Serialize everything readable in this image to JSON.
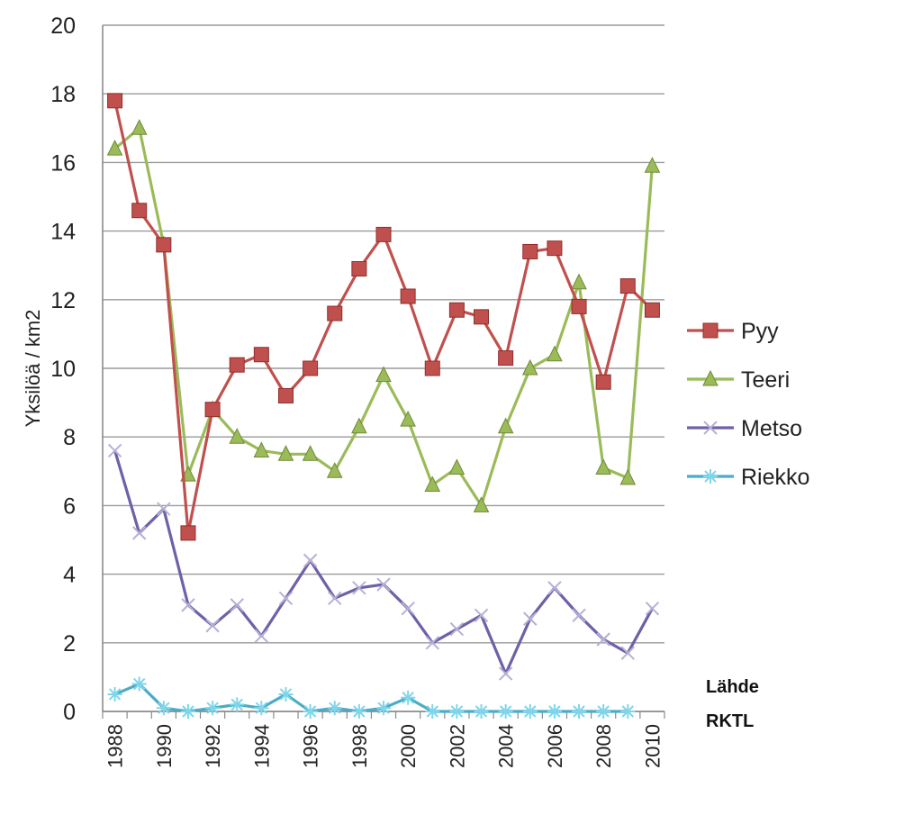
{
  "chart_data": {
    "type": "line",
    "title": "",
    "xlabel": "",
    "ylabel": "Yksilöä / km2",
    "x": [
      1988,
      1989,
      1990,
      1991,
      1992,
      1993,
      1994,
      1995,
      1996,
      1997,
      1998,
      1999,
      2000,
      2001,
      2002,
      2003,
      2004,
      2005,
      2006,
      2007,
      2008,
      2009,
      2010
    ],
    "x_tick_labels": [
      "1988",
      "1990",
      "1992",
      "1994",
      "1996",
      "1998",
      "2000",
      "2002",
      "2004",
      "2006",
      "2008",
      "2010"
    ],
    "y_tick_labels": [
      "0",
      "2",
      "4",
      "6",
      "8",
      "10",
      "12",
      "14",
      "16",
      "18",
      "20"
    ],
    "ylim": [
      0,
      20
    ],
    "grid": "horizontal",
    "legend_position": "right",
    "series": [
      {
        "name": "Pyy",
        "color": "#c0504d",
        "marker": "square",
        "values": [
          17.8,
          14.6,
          13.6,
          5.2,
          8.8,
          10.1,
          10.4,
          9.2,
          10.0,
          11.6,
          12.9,
          13.9,
          12.1,
          10.0,
          11.7,
          11.5,
          10.3,
          13.4,
          13.5,
          11.8,
          9.6,
          12.4,
          11.7
        ]
      },
      {
        "name": "Teeri",
        "color": "#9bbb59",
        "marker": "triangle",
        "values": [
          16.4,
          17.0,
          13.6,
          6.9,
          8.8,
          8.0,
          7.6,
          7.5,
          7.5,
          7.0,
          8.3,
          9.8,
          8.5,
          6.6,
          7.1,
          6.0,
          8.3,
          10.0,
          10.4,
          12.5,
          7.1,
          6.8,
          15.9
        ]
      },
      {
        "name": "Metso",
        "color": "#7060a8",
        "marker": "x",
        "values": [
          7.6,
          5.2,
          5.9,
          3.1,
          2.5,
          3.1,
          2.2,
          3.3,
          4.4,
          3.3,
          3.6,
          3.7,
          3.0,
          2.0,
          2.4,
          2.8,
          1.1,
          2.7,
          3.6,
          2.8,
          2.1,
          1.7,
          3.0
        ]
      },
      {
        "name": "Riekko",
        "color": "#4bacc6",
        "marker": "asterisk",
        "values": [
          0.5,
          0.8,
          0.1,
          0.0,
          0.1,
          0.2,
          0.1,
          0.5,
          0.0,
          0.1,
          0.0,
          0.1,
          0.4,
          0.0,
          0.0,
          0.0,
          0.0,
          0.0,
          0.0,
          0.0,
          0.0,
          0.0,
          null
        ]
      }
    ],
    "annotations": [
      "Lähde",
      "RKTL"
    ]
  }
}
